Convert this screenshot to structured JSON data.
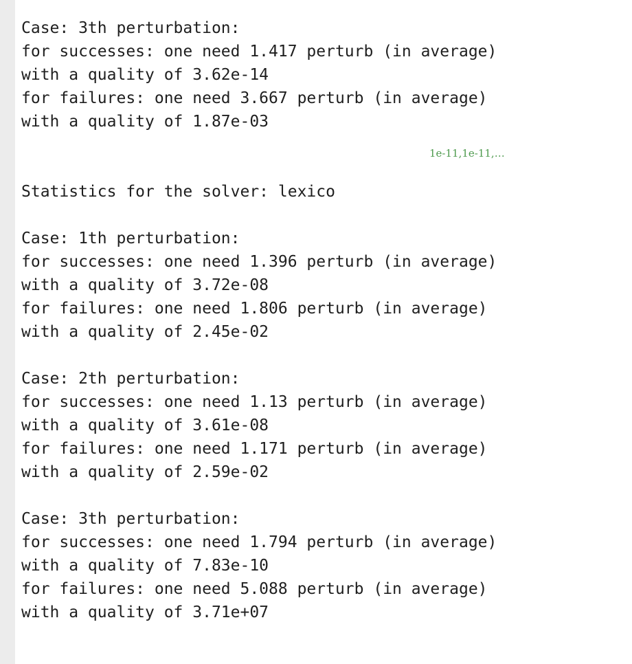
{
  "colors": {
    "gutter": "#ececec",
    "text": "#1f1f1f",
    "annotation": "#4e9a4e"
  },
  "top_block": {
    "case": "Case: 3th perturbation:",
    "successes": "for successes: one need 1.417 perturb (in average)",
    "successes_quality": "with a quality of 3.62e-14",
    "failures": "for failures: one need 3.667 perturb (in average)",
    "failures_quality": "with a quality of 1.87e-03"
  },
  "annotation": "1e-11,1e-11,…",
  "solver_header": "Statistics for the solver: lexico",
  "cases": [
    {
      "case": "Case: 1th perturbation:",
      "successes": "for successes: one need 1.396 perturb (in average)",
      "successes_quality": "with a quality of 3.72e-08",
      "failures": "for failures: one need 1.806 perturb (in average)",
      "failures_quality": "with a quality of 2.45e-02"
    },
    {
      "case": "Case: 2th perturbation:",
      "successes": "for successes: one need 1.13 perturb (in average)",
      "successes_quality": "with a quality of 3.61e-08",
      "failures": "for failures: one need 1.171 perturb (in average)",
      "failures_quality": "with a quality of 2.59e-02"
    },
    {
      "case": "Case: 3th perturbation:",
      "successes": "for successes: one need 1.794 perturb (in average)",
      "successes_quality": "with a quality of 7.83e-10",
      "failures": "for failures: one need 5.088 perturb (in average)",
      "failures_quality": "with a quality of 3.71e+07"
    }
  ]
}
